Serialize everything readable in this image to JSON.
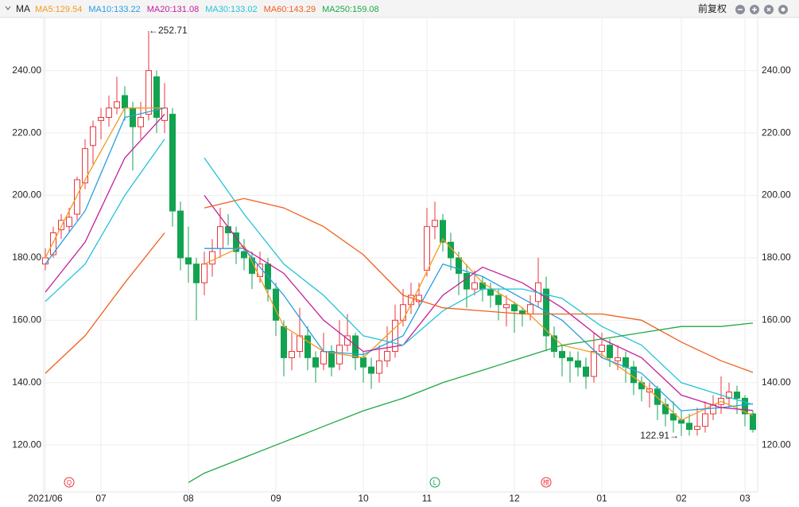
{
  "chart_data": {
    "type": "candlestick",
    "indicator": "MA",
    "adjust_label": "前复权",
    "ylim": [
      105,
      257
    ],
    "yticks": [
      {
        "value": 120,
        "label": "120.00"
      },
      {
        "value": 140,
        "label": "140.00"
      },
      {
        "value": 160,
        "label": "160.00"
      },
      {
        "value": 180,
        "label": "180.00"
      },
      {
        "value": 200,
        "label": "200.00"
      },
      {
        "value": 220,
        "label": "220.00"
      },
      {
        "value": 240,
        "label": "240.00"
      }
    ],
    "xlim": [
      0,
      90
    ],
    "xticks": [
      {
        "value": 0,
        "label": "2021/06"
      },
      {
        "value": 7,
        "label": "07"
      },
      {
        "value": 18,
        "label": "08"
      },
      {
        "value": 29,
        "label": "09"
      },
      {
        "value": 40,
        "label": "10"
      },
      {
        "value": 48,
        "label": "11"
      },
      {
        "value": 59,
        "label": "12"
      },
      {
        "value": 70,
        "label": "01"
      },
      {
        "value": 80,
        "label": "02"
      },
      {
        "value": 88,
        "label": "03"
      }
    ],
    "grid": true,
    "up_color": "#e8343c",
    "down_color": "#12a350",
    "ohlc": [
      [
        178,
        183,
        176,
        180
      ],
      [
        181,
        190,
        180,
        188
      ],
      [
        189,
        194,
        186,
        192
      ],
      [
        190,
        196,
        188,
        193
      ],
      [
        194,
        206,
        192,
        205
      ],
      [
        204,
        218,
        202,
        215
      ],
      [
        216,
        224,
        210,
        222
      ],
      [
        224,
        228,
        218,
        225
      ],
      [
        225,
        232,
        222,
        228
      ],
      [
        228,
        238,
        226,
        230
      ],
      [
        232,
        235,
        224,
        228
      ],
      [
        228,
        230,
        208,
        222
      ],
      [
        222,
        230,
        218,
        225
      ],
      [
        226,
        252.71,
        224,
        240
      ],
      [
        238,
        240,
        220,
        225
      ],
      [
        224,
        236,
        220,
        228
      ],
      [
        226,
        228,
        190,
        195
      ],
      [
        195,
        198,
        176,
        180
      ],
      [
        180,
        190,
        172,
        178
      ],
      [
        178,
        180,
        160,
        172
      ],
      [
        172,
        182,
        168,
        178
      ],
      [
        178,
        186,
        174,
        182
      ],
      [
        183,
        196,
        180,
        190
      ],
      [
        190,
        194,
        184,
        188
      ],
      [
        188,
        190,
        178,
        182
      ],
      [
        182,
        186,
        176,
        180
      ],
      [
        180,
        182,
        170,
        175
      ],
      [
        174,
        182,
        172,
        178
      ],
      [
        178,
        180,
        166,
        170
      ],
      [
        170,
        172,
        155,
        160
      ],
      [
        158,
        160,
        142,
        148
      ],
      [
        148,
        156,
        144,
        150
      ],
      [
        150,
        164,
        148,
        155
      ],
      [
        155,
        158,
        144,
        148
      ],
      [
        148,
        150,
        140,
        145
      ],
      [
        146,
        156,
        144,
        150
      ],
      [
        150,
        152,
        142,
        145
      ],
      [
        146,
        160,
        144,
        152
      ],
      [
        152,
        162,
        150,
        155
      ],
      [
        155,
        156,
        144,
        148
      ],
      [
        148,
        150,
        140,
        145
      ],
      [
        145,
        148,
        138,
        143
      ],
      [
        143,
        152,
        140,
        147
      ],
      [
        147,
        158,
        145,
        150
      ],
      [
        150,
        165,
        148,
        160
      ],
      [
        160,
        170,
        158,
        165
      ],
      [
        165,
        172,
        162,
        168
      ],
      [
        166,
        172,
        164,
        168
      ],
      [
        176,
        196,
        174,
        190
      ],
      [
        190,
        198,
        186,
        192
      ],
      [
        192,
        194,
        182,
        185
      ],
      [
        185,
        188,
        176,
        180
      ],
      [
        180,
        182,
        168,
        175
      ],
      [
        175,
        178,
        164,
        170
      ],
      [
        170,
        176,
        168,
        172
      ],
      [
        172,
        174,
        166,
        170
      ],
      [
        170,
        172,
        164,
        168
      ],
      [
        168,
        170,
        160,
        165
      ],
      [
        164,
        168,
        158,
        165
      ],
      [
        165,
        166,
        156,
        163
      ],
      [
        163,
        164,
        158,
        162
      ],
      [
        162,
        168,
        160,
        165
      ],
      [
        166,
        180,
        164,
        172
      ],
      [
        170,
        174,
        150,
        155
      ],
      [
        155,
        158,
        148,
        150
      ],
      [
        150,
        152,
        142,
        148
      ],
      [
        148,
        150,
        140,
        147
      ],
      [
        147,
        150,
        142,
        145
      ],
      [
        145,
        148,
        138,
        142
      ],
      [
        142,
        156,
        140,
        150
      ],
      [
        150,
        156,
        148,
        152
      ],
      [
        152,
        154,
        145,
        148
      ],
      [
        147,
        152,
        144,
        148
      ],
      [
        148,
        150,
        140,
        145
      ],
      [
        145,
        147,
        136,
        140
      ],
      [
        140,
        142,
        134,
        138
      ],
      [
        137,
        140,
        132,
        138
      ],
      [
        138,
        139,
        128,
        133
      ],
      [
        133,
        135,
        126,
        130
      ],
      [
        130,
        134,
        124,
        128
      ],
      [
        128,
        131,
        122.91,
        127
      ],
      [
        127,
        130,
        123,
        125
      ],
      [
        125,
        132,
        123,
        126
      ],
      [
        126,
        134,
        124,
        130
      ],
      [
        130,
        136,
        128,
        133
      ],
      [
        133,
        142,
        130,
        135
      ],
      [
        135,
        140,
        132,
        137
      ],
      [
        137,
        139,
        130,
        135
      ],
      [
        135,
        136,
        126,
        130
      ],
      [
        130,
        131,
        124,
        125
      ]
    ],
    "ma_x": [
      0,
      5,
      10,
      15,
      18,
      20,
      25,
      30,
      35,
      40,
      45,
      50,
      55,
      60,
      65,
      70,
      75,
      80,
      85,
      89
    ],
    "series": [
      {
        "name": "MA5",
        "label": "MA5:129.54",
        "color": "#f39a1e",
        "values": [
          180,
          205,
          228,
          228,
          null,
          178,
          184,
          158,
          150,
          148,
          160,
          186,
          172,
          164,
          152,
          149,
          140,
          128,
          134,
          129.54
        ]
      },
      {
        "name": "MA10",
        "label": "MA10:133.22",
        "color": "#2a9de0",
        "values": [
          178,
          195,
          225,
          228,
          null,
          183,
          183,
          168,
          150,
          149,
          155,
          178,
          174,
          167,
          160,
          148,
          143,
          131,
          132,
          133.22
        ]
      },
      {
        "name": "MA20",
        "label": "MA20:131.08",
        "color": "#c41f9a",
        "values": [
          169,
          185,
          212,
          226,
          null,
          200,
          183,
          175,
          160,
          150,
          152,
          168,
          177,
          172,
          164,
          154,
          148,
          136,
          132,
          131.08
        ]
      },
      {
        "name": "MA30",
        "label": "MA30:133.02",
        "color": "#22c3d8",
        "values": [
          166,
          178,
          200,
          218,
          null,
          212,
          194,
          178,
          168,
          155,
          152,
          163,
          170,
          170,
          167,
          158,
          152,
          140,
          136,
          133.02
        ]
      },
      {
        "name": "MA60",
        "label": "MA60:143.29",
        "color": "#f0601e",
        "values": [
          143,
          155,
          172,
          188,
          null,
          196,
          199,
          196,
          190,
          181,
          168,
          164,
          163,
          162,
          162,
          162,
          160,
          153,
          147,
          143.29
        ]
      },
      {
        "name": "MA250",
        "label": "MA250:159.08",
        "color": "#1fa845",
        "values": [
          null,
          null,
          null,
          null,
          108,
          111,
          116,
          121,
          126,
          131,
          135,
          140,
          144,
          148,
          152,
          154,
          156,
          158,
          158,
          159.08
        ]
      }
    ],
    "annotations": [
      {
        "text": "←252.71",
        "index": 13,
        "value": 252.71
      },
      {
        "text": "122.91→",
        "index": 80,
        "value": 122.91
      }
    ],
    "markers": [
      {
        "text": "Q",
        "index": 3,
        "color": "#e8343c"
      },
      {
        "text": "L",
        "index": 49,
        "color": "#12a350"
      },
      {
        "text": "榜",
        "index": 63,
        "color": "#e8343c"
      }
    ]
  }
}
